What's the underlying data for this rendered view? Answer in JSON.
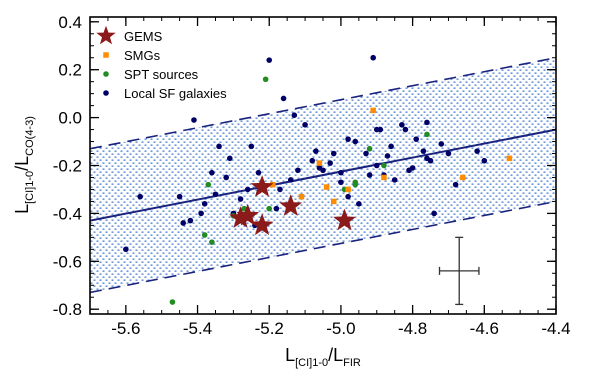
{
  "chart_data": {
    "type": "scatter",
    "xlabel": {
      "main": "L",
      "sub": "[CI]1-0",
      "slash": "/L",
      "sub2": "FIR"
    },
    "ylabel": {
      "main": "L",
      "sub": "[CI]1-0",
      "slash": "/L",
      "sub2": "CO(4-3)"
    },
    "xlim": [
      -5.7,
      -4.4
    ],
    "ylim": [
      -0.82,
      0.42
    ],
    "x_ticks": [
      "-5.6",
      "-5.4",
      "-5.2",
      "-5.0",
      "-4.8",
      "-4.6",
      "-4.4"
    ],
    "y_ticks": [
      "0.4",
      "0.2",
      "0.0",
      "-0.2",
      "-0.4",
      "-0.6",
      "-0.8"
    ],
    "grid": false,
    "legend_position": "top-left",
    "fit_line": {
      "x": [
        -5.7,
        -4.4
      ],
      "y": [
        -0.43,
        -0.05
      ]
    },
    "band_upper": {
      "x": [
        -5.7,
        -4.4
      ],
      "y": [
        -0.13,
        0.25
      ]
    },
    "band_lower": {
      "x": [
        -5.7,
        -4.4
      ],
      "y": [
        -0.73,
        -0.35
      ]
    },
    "error_bar": {
      "x": -4.67,
      "y": -0.64,
      "xerr": 0.055,
      "yerr": 0.14
    },
    "colors": {
      "gems": "#8b1a1a",
      "smgs": "#ff8c00",
      "spt": "#228b22",
      "local": "#000066",
      "band": "#4a7fd0",
      "line": "#1a237e"
    },
    "series": [
      {
        "name": "GEMS",
        "marker": "star",
        "color": "#8b1a1a",
        "x": [
          -5.28,
          -5.26,
          -5.22,
          -5.22,
          -5.14,
          -4.99
        ],
        "y": [
          -0.42,
          -0.41,
          -0.29,
          -0.45,
          -0.37,
          -0.43
        ]
      },
      {
        "name": "SMGs",
        "marker": "square",
        "color": "#ff8c00",
        "x": [
          -4.91,
          -5.06,
          -5.11,
          -5.19,
          -5.02,
          -5.04,
          -4.98,
          -4.88,
          -4.66,
          -4.53
        ],
        "y": [
          0.03,
          -0.19,
          -0.33,
          -0.28,
          -0.35,
          -0.29,
          -0.3,
          -0.25,
          -0.25,
          -0.17
        ]
      },
      {
        "name": "SPT sources",
        "marker": "circle",
        "color": "#228b22",
        "x": [
          -5.21,
          -4.92,
          -4.88,
          -4.76,
          -5.37,
          -5.38,
          -5.36,
          -5.3,
          -5.27,
          -5.2,
          -4.99,
          -4.96,
          -4.96,
          -5.47
        ],
        "y": [
          0.16,
          -0.13,
          -0.2,
          -0.07,
          -0.28,
          -0.49,
          -0.52,
          -0.41,
          -0.38,
          -0.38,
          -0.3,
          -0.28,
          -0.27,
          -0.77
        ]
      },
      {
        "name": "Local SF galaxies",
        "marker": "circle",
        "color": "#000066",
        "x": [
          -5.6,
          -5.56,
          -5.44,
          -5.41,
          -5.39,
          -5.35,
          -5.34,
          -5.32,
          -5.31,
          -5.28,
          -5.25,
          -5.23,
          -5.2,
          -5.18,
          -5.16,
          -5.13,
          -5.1,
          -5.07,
          -5.05,
          -5.03,
          -5.0,
          -4.98,
          -4.95,
          -4.93,
          -4.91,
          -4.89,
          -4.87,
          -4.85,
          -4.83,
          -4.81,
          -4.79,
          -4.77,
          -4.75,
          -4.74,
          -4.72,
          -4.7,
          -4.68,
          -4.9,
          -5.17,
          -5.12,
          -5.08,
          -5.02,
          -4.96,
          -4.9,
          -4.82,
          -4.76,
          -4.62,
          -5.42,
          -5.36,
          -5.26,
          -5.14,
          -5.06,
          -4.92,
          -4.86,
          -4.8,
          -4.76,
          -4.6,
          -5.45,
          -5.38,
          -5.3,
          -5.24,
          -4.98,
          -5.0,
          -4.88
        ],
        "y": [
          -0.55,
          -0.33,
          -0.44,
          -0.01,
          -0.4,
          -0.32,
          -0.12,
          -0.25,
          -0.17,
          -0.34,
          -0.12,
          -0.23,
          0.24,
          -0.38,
          0.08,
          0.01,
          -0.03,
          -0.14,
          -0.22,
          -0.19,
          -0.27,
          -0.09,
          -0.36,
          -0.15,
          0.25,
          -0.05,
          -0.16,
          -0.26,
          -0.03,
          -0.22,
          -0.09,
          -0.14,
          -0.18,
          -0.4,
          -0.11,
          -0.15,
          -0.28,
          -0.05,
          -0.3,
          -0.22,
          -0.18,
          -0.15,
          -0.1,
          -0.2,
          -0.05,
          -0.17,
          -0.14,
          -0.43,
          -0.23,
          -0.3,
          -0.26,
          -0.21,
          -0.24,
          -0.12,
          -0.21,
          -0.02,
          -0.18,
          -0.33,
          -0.36,
          -0.4,
          -0.45,
          -0.33,
          -0.23,
          -0.24
        ]
      }
    ]
  }
}
